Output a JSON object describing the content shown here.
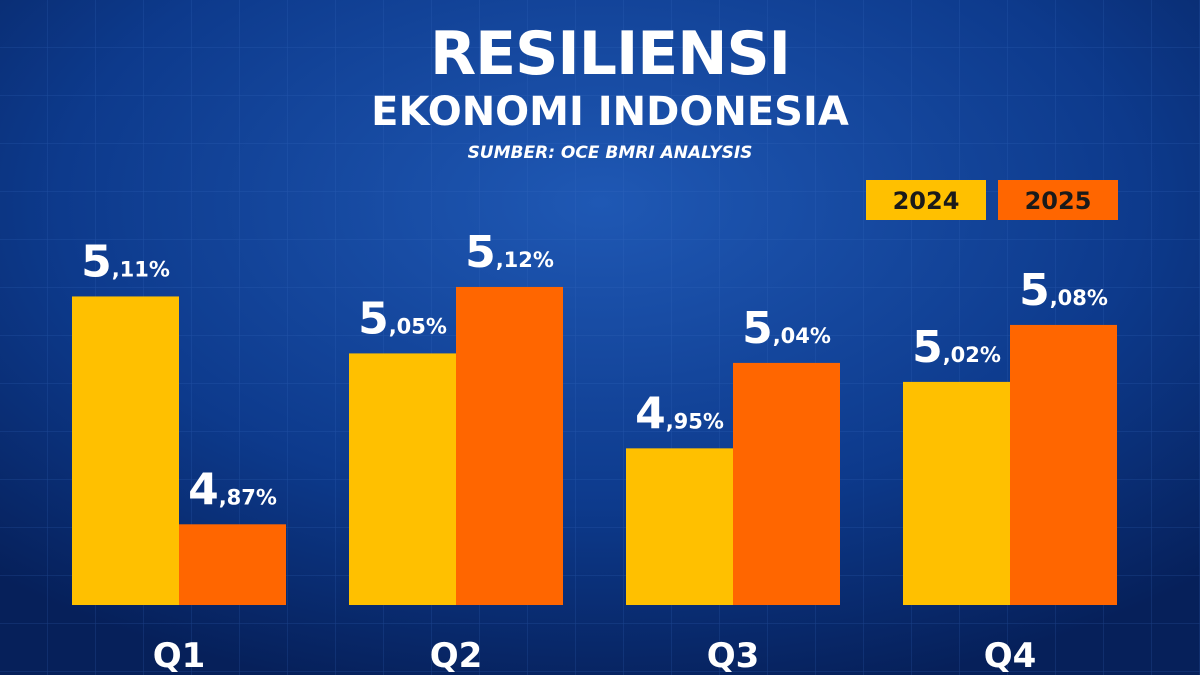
{
  "chart_data": {
    "type": "bar",
    "title": "RESILIENSI",
    "subtitle": "EKONOMI INDONESIA",
    "source": "SUMBER: OCE BMRI ANALYSIS",
    "categories": [
      "Q1",
      "Q2",
      "Q3",
      "Q4"
    ],
    "series": [
      {
        "name": "2024",
        "color": "#ffc000",
        "values": [
          5.11,
          5.05,
          4.95,
          5.02
        ],
        "value_labels": [
          "5,11%",
          "5,05%",
          "4,95%",
          "5,02%"
        ]
      },
      {
        "name": "2025",
        "color": "#ff6600",
        "values": [
          4.87,
          5.12,
          5.04,
          5.08
        ],
        "value_labels": [
          "4,87%",
          "5,12%",
          "5,04%",
          "5,08%"
        ]
      }
    ],
    "ylim": [
      4.785,
      5.2
    ],
    "legend": "top-right"
  }
}
